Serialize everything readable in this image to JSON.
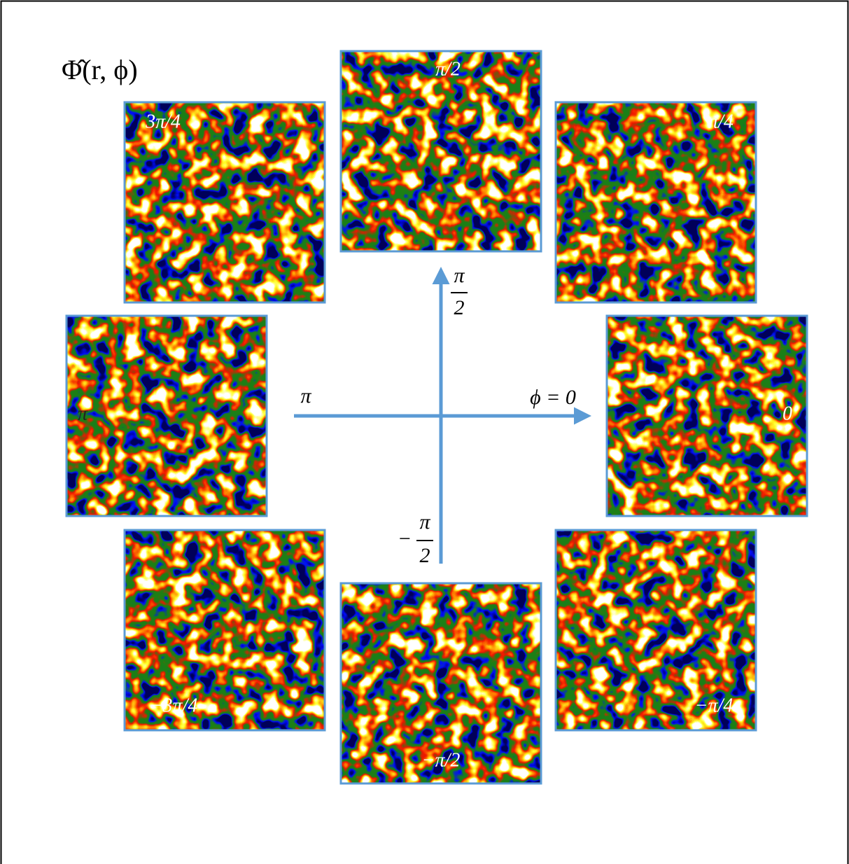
{
  "title": "Φ̂(r, ϕ)",
  "panels": [
    {
      "label": "π/2"
    },
    {
      "label": "3π/4"
    },
    {
      "label": "π/4"
    },
    {
      "label": "π"
    },
    {
      "label": "0"
    },
    {
      "label": "−3π/4"
    },
    {
      "label": "−π/2"
    },
    {
      "label": "−π/4"
    }
  ],
  "axes": {
    "horizontal_left": "π",
    "horizontal_right": "ϕ = 0",
    "vertical_top": {
      "numerator": "π",
      "denominator": "2"
    },
    "vertical_bottom": {
      "sign": "−",
      "numerator": "π",
      "denominator": "2"
    }
  }
}
